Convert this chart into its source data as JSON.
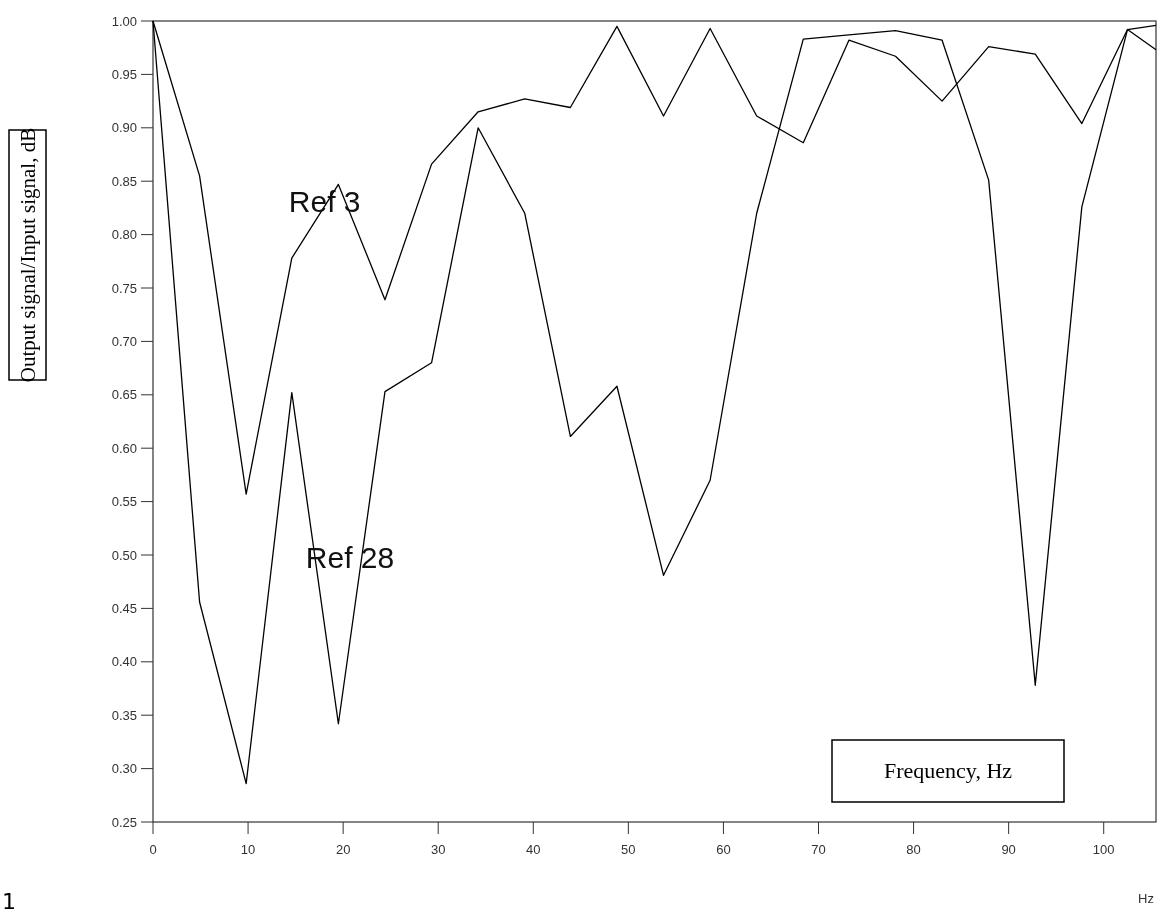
{
  "chart_data": {
    "type": "line",
    "xlabel": "Frequency, Hz",
    "ylabel": "Output signal/Input signal, dB",
    "x": [
      0,
      4.9,
      9.8,
      14.6,
      19.5,
      24.4,
      29.3,
      34.2,
      39.1,
      43.9,
      48.8,
      53.7,
      58.6,
      63.5,
      68.4,
      73.2,
      78.1,
      83,
      87.9,
      92.8,
      97.7,
      102.5,
      105.5
    ],
    "series": [
      {
        "name": "Ref 3",
        "color": "#000000",
        "values": [
          1.0,
          0.855,
          0.557,
          0.778,
          0.847,
          0.739,
          0.866,
          0.915,
          0.927,
          0.919,
          0.995,
          0.911,
          0.993,
          0.911,
          0.886,
          0.982,
          0.967,
          0.925,
          0.976,
          0.969,
          0.904,
          0.992,
          0.973
        ]
      },
      {
        "name": "Ref 28",
        "color": "#000000",
        "values": [
          1.0,
          0.456,
          0.286,
          0.652,
          0.342,
          0.653,
          0.68,
          0.9,
          0.82,
          0.611,
          0.658,
          0.481,
          0.57,
          0.82,
          0.983,
          0.987,
          0.991,
          0.982,
          0.851,
          0.378,
          0.826,
          0.992,
          0.996
        ]
      }
    ],
    "xlim": [
      0,
      105.5
    ],
    "ylim": [
      0.25,
      1.0
    ],
    "xticks": [
      0,
      10,
      20,
      30,
      40,
      50,
      60,
      70,
      80,
      90,
      100
    ],
    "yticks": [
      {
        "value": 0.25,
        "label": "0.25"
      },
      {
        "value": 0.3,
        "label": "0.30"
      },
      {
        "value": 0.35,
        "label": "0.35"
      },
      {
        "value": 0.4,
        "label": "0.40"
      },
      {
        "value": 0.45,
        "label": "0.45"
      },
      {
        "value": 0.5,
        "label": "0.50"
      },
      {
        "value": 0.55,
        "label": "0.55"
      },
      {
        "value": 0.6,
        "label": "0.60"
      },
      {
        "value": 0.65,
        "label": "0.65"
      },
      {
        "value": 0.7,
        "label": "0.70"
      },
      {
        "value": 0.75,
        "label": "0.75"
      },
      {
        "value": 0.8,
        "label": "0.80"
      },
      {
        "value": 0.85,
        "label": "0.85"
      },
      {
        "value": 0.9,
        "label": "0.90"
      },
      {
        "value": 0.95,
        "label": "0.95"
      },
      {
        "value": 1.0,
        "label": "1.00"
      }
    ],
    "grid": false,
    "marker": "none",
    "line_style": "solid",
    "annotations": [
      "Hz",
      "1"
    ]
  }
}
